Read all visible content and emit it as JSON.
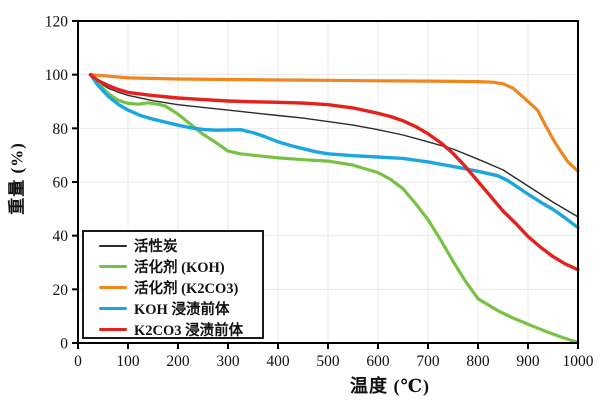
{
  "axes": {
    "x": {
      "title": "温度 (℃)",
      "min": 0,
      "max": 1000,
      "tick_step": 100,
      "tick_labels": [
        "0",
        "100",
        "200",
        "300",
        "400",
        "500",
        "600",
        "700",
        "800",
        "900",
        "1000"
      ]
    },
    "y": {
      "title": "重量 (%)",
      "min": 0,
      "max": 120,
      "tick_step": 20,
      "tick_labels": [
        "0",
        "20",
        "40",
        "60",
        "80",
        "100",
        "120"
      ]
    }
  },
  "colors": {
    "activated_carbon": "#2b2b2b",
    "koh_activant": "#77c143",
    "k2co3_activant": "#f0861f",
    "koh_precursor": "#1ca6e0",
    "k2co3_precursor": "#e4211c",
    "grid": "#e8e8e8",
    "axis": "#000000"
  },
  "legend": {
    "items": [
      {
        "label": "活性炭",
        "color": "#2b2b2b",
        "thickness": 2
      },
      {
        "label": "活化剂 (KOH)",
        "color": "#77c143",
        "thickness": 2.5
      },
      {
        "label": "活化剂 (K2CO3)",
        "color": "#f0861f",
        "thickness": 2.5
      },
      {
        "label": "KOH 浸渍前体",
        "color": "#1ca6e0",
        "thickness": 3.5
      },
      {
        "label": "K2CO3 浸渍前体",
        "color": "#e4211c",
        "thickness": 3.5
      }
    ]
  },
  "chart_data": {
    "type": "line",
    "title": "",
    "xlabel": "温度 (℃)",
    "ylabel": "重量 (%)",
    "xlim": [
      0,
      1000
    ],
    "ylim": [
      0,
      120
    ],
    "grid": true,
    "legend_position": "lower-left",
    "series": [
      {
        "name": "活性炭",
        "color": "#2b2b2b",
        "width": 1.4,
        "points": [
          [
            25,
            100
          ],
          [
            40,
            97.5
          ],
          [
            60,
            95
          ],
          [
            80,
            93.5
          ],
          [
            100,
            92.3
          ],
          [
            150,
            90.3
          ],
          [
            200,
            88.8
          ],
          [
            250,
            87.8
          ],
          [
            300,
            86.8
          ],
          [
            350,
            85.8
          ],
          [
            400,
            84.8
          ],
          [
            450,
            83.8
          ],
          [
            500,
            82.5
          ],
          [
            550,
            81.2
          ],
          [
            600,
            79.5
          ],
          [
            650,
            77.5
          ],
          [
            700,
            75
          ],
          [
            750,
            72.3
          ],
          [
            800,
            68.5
          ],
          [
            850,
            64.5
          ],
          [
            900,
            58.5
          ],
          [
            950,
            52.5
          ],
          [
            1000,
            47
          ]
        ]
      },
      {
        "name": "活化剂 (KOH)",
        "color": "#77c143",
        "width": 3.2,
        "points": [
          [
            25,
            100
          ],
          [
            40,
            97
          ],
          [
            60,
            93
          ],
          [
            80,
            90.5
          ],
          [
            100,
            89.3
          ],
          [
            120,
            89
          ],
          [
            140,
            89.5
          ],
          [
            160,
            89
          ],
          [
            175,
            88.3
          ],
          [
            200,
            85.3
          ],
          [
            225,
            81.5
          ],
          [
            250,
            77.8
          ],
          [
            275,
            74.8
          ],
          [
            300,
            71.5
          ],
          [
            325,
            70.5
          ],
          [
            350,
            70
          ],
          [
            400,
            69
          ],
          [
            450,
            68.3
          ],
          [
            500,
            67.8
          ],
          [
            550,
            66.3
          ],
          [
            600,
            63.5
          ],
          [
            625,
            61
          ],
          [
            650,
            57.5
          ],
          [
            675,
            52
          ],
          [
            700,
            46
          ],
          [
            725,
            38.5
          ],
          [
            750,
            30.5
          ],
          [
            775,
            23
          ],
          [
            800,
            16.5
          ],
          [
            840,
            12
          ],
          [
            870,
            9.3
          ],
          [
            900,
            7
          ],
          [
            940,
            4
          ],
          [
            970,
            2
          ],
          [
            1000,
            0.2
          ]
        ]
      },
      {
        "name": "活化剂 (K2CO3)",
        "color": "#f0861f",
        "width": 3.2,
        "points": [
          [
            25,
            100
          ],
          [
            50,
            99.6
          ],
          [
            100,
            98.8
          ],
          [
            200,
            98.4
          ],
          [
            300,
            98.2
          ],
          [
            400,
            98
          ],
          [
            500,
            97.9
          ],
          [
            600,
            97.7
          ],
          [
            700,
            97.6
          ],
          [
            800,
            97.4
          ],
          [
            830,
            97.2
          ],
          [
            850,
            96.6
          ],
          [
            870,
            95
          ],
          [
            885,
            92.5
          ],
          [
            900,
            90
          ],
          [
            912,
            88
          ],
          [
            920,
            86.5
          ],
          [
            935,
            81
          ],
          [
            950,
            76
          ],
          [
            965,
            71.5
          ],
          [
            980,
            67.5
          ],
          [
            1000,
            64
          ]
        ]
      },
      {
        "name": "KOH 浸渍前体",
        "color": "#1ca6e0",
        "width": 3.4,
        "points": [
          [
            25,
            100
          ],
          [
            40,
            96
          ],
          [
            60,
            92
          ],
          [
            80,
            89
          ],
          [
            100,
            86.8
          ],
          [
            125,
            84.8
          ],
          [
            150,
            83.4
          ],
          [
            175,
            82.3
          ],
          [
            200,
            81.2
          ],
          [
            225,
            80.2
          ],
          [
            250,
            79.6
          ],
          [
            275,
            79.3
          ],
          [
            300,
            79.4
          ],
          [
            325,
            79.5
          ],
          [
            350,
            78.4
          ],
          [
            375,
            76.8
          ],
          [
            400,
            75
          ],
          [
            425,
            73.6
          ],
          [
            450,
            72.4
          ],
          [
            475,
            71.3
          ],
          [
            500,
            70.5
          ],
          [
            550,
            69.8
          ],
          [
            600,
            69.3
          ],
          [
            650,
            68.8
          ],
          [
            700,
            67.5
          ],
          [
            750,
            65.8
          ],
          [
            800,
            64
          ],
          [
            840,
            62.3
          ],
          [
            860,
            60.5
          ],
          [
            880,
            58
          ],
          [
            900,
            55.5
          ],
          [
            925,
            52.5
          ],
          [
            950,
            49.8
          ],
          [
            975,
            46.5
          ],
          [
            1000,
            43
          ]
        ]
      },
      {
        "name": "K2CO3 浸渍前体",
        "color": "#e4211c",
        "width": 3.4,
        "points": [
          [
            25,
            100
          ],
          [
            40,
            97.8
          ],
          [
            60,
            96
          ],
          [
            80,
            94.5
          ],
          [
            100,
            93.4
          ],
          [
            150,
            92.2
          ],
          [
            200,
            91.3
          ],
          [
            250,
            90.7
          ],
          [
            300,
            90.2
          ],
          [
            350,
            89.9
          ],
          [
            400,
            89.7
          ],
          [
            450,
            89.4
          ],
          [
            500,
            88.8
          ],
          [
            550,
            87.6
          ],
          [
            600,
            85.6
          ],
          [
            625,
            84.4
          ],
          [
            650,
            82.8
          ],
          [
            675,
            80.7
          ],
          [
            700,
            78
          ],
          [
            725,
            74.7
          ],
          [
            750,
            70.7
          ],
          [
            775,
            65.7
          ],
          [
            800,
            60.2
          ],
          [
            825,
            54.7
          ],
          [
            850,
            49.2
          ],
          [
            875,
            44.7
          ],
          [
            900,
            39.7
          ],
          [
            925,
            35.7
          ],
          [
            950,
            32.2
          ],
          [
            975,
            29.4
          ],
          [
            1000,
            27.3
          ]
        ]
      }
    ]
  }
}
